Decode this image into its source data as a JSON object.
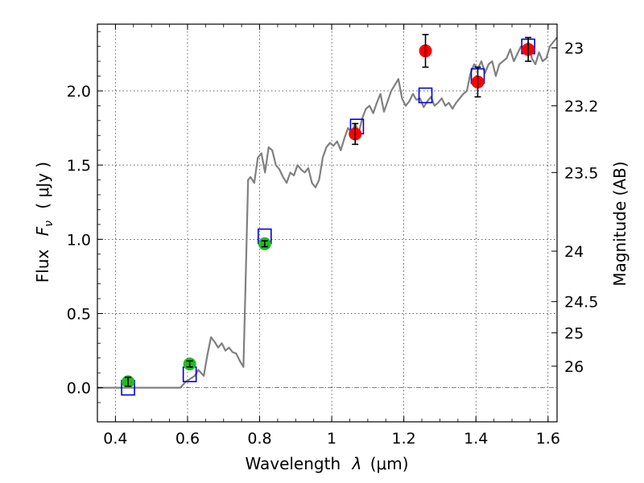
{
  "chart_data": {
    "type": "scatter",
    "xlabel": "Wavelength  λ (μm)",
    "ylabel": "Flux  F_ν  ( μJy )",
    "ylabel_parts": {
      "prefix": "Flux",
      "symbol": "F",
      "subscript": "ν",
      "unit": "( μJy )"
    },
    "xlabel_parts": {
      "prefix": "Wavelength",
      "symbol": "λ",
      "unit": "(μm)"
    },
    "y2label": "Magnitude (AB)",
    "xlim": [
      0.35,
      1.625
    ],
    "ylim": [
      -0.23,
      2.45
    ],
    "x_ticks": [
      {
        "value": 0.4,
        "label": "0.4"
      },
      {
        "value": 0.6,
        "label": "0.6"
      },
      {
        "value": 0.8,
        "label": "0.8"
      },
      {
        "value": 1.0,
        "label": "1"
      },
      {
        "value": 1.2,
        "label": "1.2"
      },
      {
        "value": 1.4,
        "label": "1.4"
      },
      {
        "value": 1.6,
        "label": "1.6"
      }
    ],
    "y_ticks": [
      {
        "value": 0.0,
        "label": "0.0"
      },
      {
        "value": 0.5,
        "label": "0.5"
      },
      {
        "value": 1.0,
        "label": "1.0"
      },
      {
        "value": 1.5,
        "label": "1.5"
      },
      {
        "value": 2.0,
        "label": "2.0"
      }
    ],
    "y2_ticks": [
      {
        "flux": 2.29,
        "label": "23"
      },
      {
        "flux": 1.9,
        "label": "23.2"
      },
      {
        "flux": 1.45,
        "label": "23.5"
      },
      {
        "flux": 0.92,
        "label": "24"
      },
      {
        "flux": 0.58,
        "label": "24.5"
      },
      {
        "flux": 0.37,
        "label": "25"
      },
      {
        "flux": 0.145,
        "label": "26"
      }
    ],
    "grid": true,
    "zero_line": true,
    "series": [
      {
        "name": "model spectrum",
        "kind": "line",
        "color": "#808080",
        "x": [
          0.35,
          0.58,
          0.595,
          0.62,
          0.63,
          0.645,
          0.655,
          0.665,
          0.675,
          0.685,
          0.695,
          0.705,
          0.715,
          0.725,
          0.735,
          0.745,
          0.755,
          0.762,
          0.768,
          0.775,
          0.785,
          0.795,
          0.805,
          0.815,
          0.825,
          0.835,
          0.845,
          0.855,
          0.865,
          0.875,
          0.885,
          0.895,
          0.905,
          0.915,
          0.925,
          0.935,
          0.945,
          0.955,
          0.965,
          0.975,
          0.985,
          0.995,
          1.005,
          1.015,
          1.025,
          1.035,
          1.045,
          1.055,
          1.065,
          1.075,
          1.085,
          1.095,
          1.105,
          1.115,
          1.125,
          1.135,
          1.145,
          1.155,
          1.165,
          1.175,
          1.185,
          1.195,
          1.205,
          1.215,
          1.225,
          1.235,
          1.245,
          1.255,
          1.265,
          1.275,
          1.285,
          1.295,
          1.305,
          1.315,
          1.325,
          1.335,
          1.345,
          1.355,
          1.365,
          1.375,
          1.385,
          1.395,
          1.405,
          1.415,
          1.425,
          1.435,
          1.445,
          1.455,
          1.465,
          1.475,
          1.485,
          1.495,
          1.505,
          1.515,
          1.525,
          1.535,
          1.545,
          1.555,
          1.565,
          1.575,
          1.585,
          1.595,
          1.605,
          1.615,
          1.625
        ],
        "y": [
          0.0,
          0.0,
          0.04,
          0.08,
          0.12,
          0.08,
          0.22,
          0.34,
          0.31,
          0.27,
          0.3,
          0.25,
          0.27,
          0.24,
          0.23,
          0.18,
          0.14,
          0.8,
          1.4,
          1.42,
          1.38,
          1.55,
          1.58,
          1.45,
          1.62,
          1.6,
          1.5,
          1.47,
          1.42,
          1.38,
          1.45,
          1.43,
          1.5,
          1.47,
          1.45,
          1.48,
          1.38,
          1.35,
          1.4,
          1.55,
          1.62,
          1.65,
          1.63,
          1.66,
          1.6,
          1.68,
          1.75,
          1.72,
          1.78,
          1.72,
          1.82,
          1.88,
          1.9,
          1.85,
          1.92,
          1.98,
          1.86,
          1.93,
          2.0,
          2.04,
          2.08,
          1.95,
          1.9,
          1.93,
          1.98,
          1.94,
          1.95,
          1.89,
          1.93,
          1.96,
          1.9,
          1.92,
          1.95,
          1.9,
          1.92,
          1.88,
          1.92,
          1.95,
          1.98,
          2.0,
          2.12,
          2.18,
          2.15,
          2.2,
          2.12,
          2.18,
          2.2,
          2.1,
          2.18,
          2.2,
          2.22,
          2.28,
          2.2,
          2.25,
          2.3,
          2.26,
          2.33,
          2.22,
          2.18,
          2.26,
          2.2,
          2.22,
          2.3,
          2.33,
          2.36
        ]
      },
      {
        "name": "model photometry",
        "kind": "open-square",
        "color": "#0000dd",
        "x": [
          0.435,
          0.606,
          0.814,
          1.07,
          1.26,
          1.405,
          1.545
        ],
        "y": [
          0.0,
          0.09,
          1.02,
          1.76,
          1.97,
          2.1,
          2.3
        ]
      },
      {
        "name": "observed (green)",
        "kind": "point",
        "color": "#22bb22",
        "x": [
          0.435,
          0.606,
          0.814
        ],
        "y": [
          0.04,
          0.16,
          0.97
        ],
        "err": [
          0.03,
          0.02,
          0.02
        ]
      },
      {
        "name": "observed (red)",
        "kind": "point",
        "color": "#ff0000",
        "x": [
          1.065,
          1.26,
          1.405,
          1.545
        ],
        "y": [
          1.71,
          2.27,
          2.06,
          2.28
        ],
        "err": [
          0.07,
          0.11,
          0.1,
          0.08
        ]
      }
    ]
  }
}
